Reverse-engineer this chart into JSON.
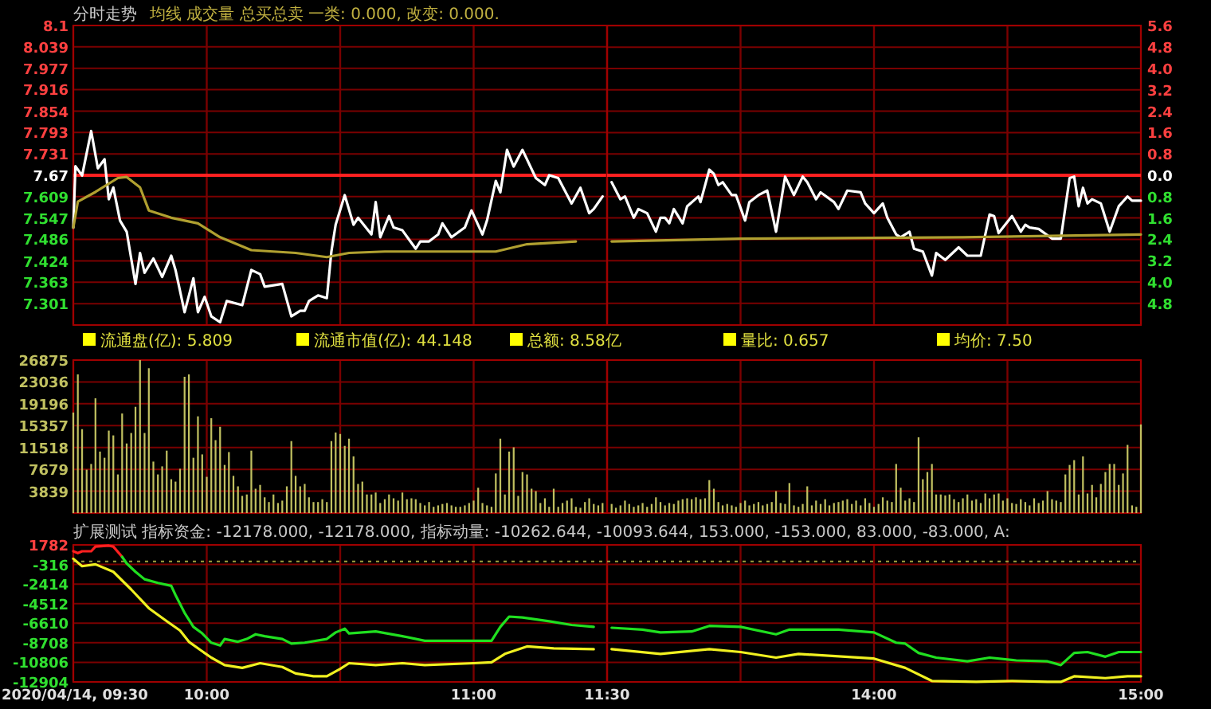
{
  "chart_data": [
    {
      "type": "line",
      "title": "分时走势",
      "subtitle": "均线  成交量  总买总卖  一类: 0.000,  改变: 0.000.",
      "tick_labels": "y",
      "grid": true,
      "xlim": [
        9.5,
        11.5
      ],
      "xticks": [
        9.5,
        10,
        10.5,
        11,
        11.5
      ],
      "ylim": [
        7.24,
        8.1
      ],
      "yticks": [
        8.1,
        8.039,
        7.977,
        7.916,
        7.854,
        7.793,
        7.731,
        7.67,
        7.609,
        7.547,
        7.486,
        7.424,
        7.363,
        7.301
      ],
      "ref_lines": [
        {
          "axis": "y",
          "value": 7.67,
          "color": "#ff2020"
        }
      ],
      "annotations": [
        "流通盘(亿): 5.809",
        "流通市值(亿): 44.148",
        "总额: 8.58亿",
        "量比: 0.657",
        "均价: 7.50"
      ],
      "series": [
        {
          "color": "#ffffff",
          "x": [
            9.5,
            9.508,
            9.533,
            9.567,
            9.592,
            9.617,
            9.633,
            9.65,
            9.675,
            9.7,
            9.733,
            9.75,
            9.767,
            9.8,
            9.833,
            9.867,
            9.883,
            9.917,
            9.95,
            9.967,
            9.992,
            10.017,
            10.05,
            10.075,
            10.133,
            10.167,
            10.2,
            10.217,
            10.283,
            10.317,
            10.35,
            10.367,
            10.383,
            10.417,
            10.45,
            10.467,
            10.483,
            10.517,
            10.55,
            10.567,
            10.617,
            10.633,
            10.65,
            10.683,
            10.7,
            10.733,
            10.783,
            10.8,
            10.833,
            10.867,
            10.883,
            10.917,
            10.967,
            10.992,
            11.033,
            11.05,
            11.083,
            11.1,
            11.125,
            11.15,
            11.183,
            11.233,
            11.267,
            11.283,
            11.317,
            11.367,
            11.4,
            11.433,
            11.45,
            11.483
          ],
          "values": [
            7.52,
            7.696,
            7.669,
            7.797,
            7.69,
            7.716,
            7.601,
            7.635,
            7.54,
            7.508,
            7.358,
            7.447,
            7.39,
            7.431,
            7.378,
            7.439,
            7.398,
            7.277,
            7.374,
            7.277,
            7.321,
            7.265,
            7.248,
            7.309,
            7.297,
            7.398,
            7.386,
            7.35,
            7.358,
            7.265,
            7.281,
            7.281,
            7.309,
            7.325,
            7.317,
            7.451,
            7.528,
            7.613,
            7.528,
            7.548,
            7.5,
            7.593,
            7.492,
            7.553,
            7.52,
            7.512,
            7.459,
            7.48,
            7.48,
            7.5,
            7.532,
            7.492,
            7.52,
            7.569,
            7.5,
            7.54,
            7.654,
            7.621,
            7.743,
            7.695,
            7.743,
            7.662,
            7.642,
            7.67,
            7.662,
            7.589,
            7.634,
            7.561,
            7.573,
            7.609
          ]
        },
        {
          "color": "#b0a030",
          "x": [
            9.5,
            9.517,
            9.583,
            9.667,
            9.7,
            9.75,
            9.783,
            9.867,
            9.967,
            10.05,
            10.167,
            10.333,
            10.45,
            10.533,
            10.667,
            11.083,
            11.2,
            11.383
          ],
          "values": [
            7.52,
            7.594,
            7.622,
            7.662,
            7.665,
            7.635,
            7.569,
            7.548,
            7.532,
            7.492,
            7.455,
            7.447,
            7.435,
            7.447,
            7.451,
            7.451,
            7.472,
            7.48
          ]
        }
      ]
    },
    {
      "type": "line",
      "tick_labels": "y",
      "grid": true,
      "xlim": [
        13,
        15
      ],
      "xticks": [
        13,
        13.5,
        14,
        14.5,
        15
      ],
      "ylim": [
        7.24,
        8.1
      ],
      "y2lim": [
        -5.61,
        5.61
      ],
      "y2ticks": [
        {
          "value": 5.6,
          "label": "5.6"
        },
        {
          "value": 4.8,
          "label": "4.8"
        },
        {
          "value": 4,
          "label": "4.0"
        },
        {
          "value": 3.2,
          "label": "3.2"
        },
        {
          "value": 2.4,
          "label": "2.4"
        },
        {
          "value": 1.6,
          "label": "1.6"
        },
        {
          "value": 0.8,
          "label": "0.8"
        },
        {
          "value": 0,
          "label": "0.0"
        },
        {
          "value": -0.8,
          "label": "0.8"
        },
        {
          "value": -1.6,
          "label": "1.6"
        },
        {
          "value": -2.4,
          "label": "2.4"
        },
        {
          "value": -3.2,
          "label": "3.2"
        },
        {
          "value": -4.0,
          "label": "4.0"
        },
        {
          "value": -4.8,
          "label": "4.8"
        }
      ],
      "ref_lines": [
        {
          "axis": "y",
          "value": 7.67,
          "color": "#ff2020"
        }
      ],
      "series": [
        {
          "color": "#ffffff",
          "x": [
            13.017,
            13.05,
            13.067,
            13.1,
            13.117,
            13.15,
            13.183,
            13.2,
            13.217,
            13.233,
            13.25,
            13.283,
            13.3,
            13.342,
            13.35,
            13.383,
            13.4,
            13.417,
            13.433,
            13.467,
            13.483,
            13.517,
            13.533,
            13.567,
            13.6,
            13.633,
            13.667,
            13.7,
            13.733,
            13.75,
            13.783,
            13.8,
            13.85,
            13.867,
            13.9,
            13.95,
            13.967,
            14,
            14.033,
            14.05,
            14.083,
            14.1,
            14.133,
            14.15,
            14.183,
            14.217,
            14.233,
            14.267,
            14.317,
            14.35,
            14.4,
            14.433,
            14.45,
            14.467,
            14.517,
            14.55,
            14.567,
            14.583,
            14.617,
            14.667,
            14.7,
            14.733,
            14.75,
            14.767,
            14.783,
            14.8,
            14.817,
            14.85,
            14.883,
            14.917,
            14.95,
            14.967,
            15
          ],
          "values": [
            7.65,
            7.601,
            7.609,
            7.548,
            7.573,
            7.561,
            7.508,
            7.548,
            7.548,
            7.532,
            7.573,
            7.532,
            7.581,
            7.609,
            7.593,
            7.686,
            7.674,
            7.642,
            7.65,
            7.613,
            7.613,
            7.54,
            7.593,
            7.613,
            7.626,
            7.508,
            7.666,
            7.613,
            7.666,
            7.65,
            7.601,
            7.621,
            7.593,
            7.573,
            7.626,
            7.621,
            7.589,
            7.561,
            7.589,
            7.548,
            7.5,
            7.492,
            7.508,
            7.459,
            7.451,
            7.382,
            7.447,
            7.427,
            7.463,
            7.439,
            7.439,
            7.557,
            7.553,
            7.504,
            7.553,
            7.508,
            7.528,
            7.52,
            7.516,
            7.488,
            7.488,
            7.662,
            7.666,
            7.581,
            7.634,
            7.589,
            7.601,
            7.589,
            7.508,
            7.581,
            7.609,
            7.597,
            7.597
          ]
        },
        {
          "color": "#b0a030",
          "x": [
            13.017,
            13.5,
            14.333,
            15
          ],
          "values": [
            7.48,
            7.488,
            7.492,
            7.5
          ]
        }
      ]
    },
    {
      "type": "bar",
      "tick_labels": "y",
      "grid": true,
      "xlim": [
        9.5,
        11.5
      ],
      "xticks": [
        9.5,
        10,
        10.5,
        11,
        11.5
      ],
      "ylim": [
        0,
        26875
      ],
      "yticks": [
        3839,
        7679,
        11518,
        15357,
        19196,
        23036,
        26875
      ],
      "x": [
        9.5,
        9.517,
        9.533,
        9.55,
        9.567,
        9.583,
        9.6,
        9.617,
        9.633,
        9.65,
        9.667,
        9.683,
        9.7,
        9.717,
        9.733,
        9.75,
        9.767,
        9.783,
        9.8,
        9.817,
        9.833,
        9.85,
        9.867,
        9.883,
        9.9,
        9.917,
        9.933,
        9.95,
        9.967,
        9.983,
        10,
        10.017,
        10.033,
        10.05,
        10.067,
        10.083,
        10.1,
        10.117,
        10.133,
        10.15,
        10.167,
        10.183,
        10.2,
        10.217,
        10.233,
        10.25,
        10.267,
        10.283,
        10.3,
        10.317,
        10.333,
        10.35,
        10.367,
        10.383,
        10.4,
        10.417,
        10.433,
        10.45,
        10.467,
        10.483,
        10.5,
        10.517,
        10.533,
        10.55,
        10.567,
        10.583,
        10.6,
        10.617,
        10.633,
        10.65,
        10.667,
        10.683,
        10.7,
        10.717,
        10.733,
        10.75,
        10.767,
        10.783,
        10.8,
        10.817,
        10.833,
        10.85,
        10.867,
        10.883,
        10.9,
        10.917,
        10.933,
        10.95,
        10.967,
        10.983,
        11,
        11.017,
        11.033,
        11.05,
        11.067,
        11.083,
        11.1,
        11.117,
        11.133,
        11.15,
        11.167,
        11.183,
        11.2,
        11.217,
        11.233,
        11.25,
        11.267,
        11.283,
        11.3,
        11.317,
        11.333,
        11.35,
        11.367,
        11.383,
        11.4,
        11.417,
        11.433,
        11.45,
        11.467,
        11.483
      ],
      "series": [
        {
          "color": "#c0c060",
          "values": [
            17660,
            24360,
            14730,
            7620,
            8620,
            20170,
            10800,
            9710,
            14480,
            13640,
            6780,
            17490,
            12220,
            14060,
            18660,
            26870,
            14060,
            25440,
            9040,
            6780,
            8200,
            10960,
            5940,
            5520,
            7780,
            23940,
            24360,
            9710,
            16990,
            10300,
            6360,
            16660,
            12810,
            15150,
            8450,
            10710,
            6530,
            4690,
            3010,
            3260,
            10960,
            4270,
            4940,
            2760,
            1930,
            3260,
            1760,
            2180,
            4690,
            12640,
            6530,
            4690,
            5110,
            2760,
            1930,
            1930,
            2430,
            1930,
            12640,
            14150,
            13890,
            11800,
            13060,
            9960,
            5110,
            5520,
            3260,
            3260,
            3600,
            1760,
            2430,
            3260,
            2590,
            2180,
            3600,
            2430,
            2590,
            2430,
            1760,
            1340,
            1930,
            1090,
            1340,
            1590,
            1760,
            1340,
            1090,
            1090,
            1340,
            1760,
            2180,
            4440,
            1760,
            1340,
            1090,
            6950,
            13060,
            3260,
            10800,
            11550,
            3010,
            7200,
            6780,
            4270,
            3850,
            1760,
            2590,
            1090,
            4270,
            1090,
            1760,
            2180,
            2590,
            1090,
            920,
            1930,
            2590,
            1590,
            1340,
            1760
          ]
        }
      ]
    },
    {
      "type": "bar",
      "tick_labels": false,
      "grid": true,
      "xlim": [
        13,
        15
      ],
      "xticks": [
        13,
        13.5,
        14,
        14.5,
        15
      ],
      "ylim": [
        0,
        26875
      ],
      "yticks": [
        3839,
        7679,
        11518,
        15357,
        19196,
        23036,
        26875
      ],
      "x": [
        13.017,
        13.033,
        13.05,
        13.067,
        13.083,
        13.1,
        13.117,
        13.133,
        13.15,
        13.167,
        13.183,
        13.2,
        13.217,
        13.233,
        13.25,
        13.267,
        13.283,
        13.3,
        13.317,
        13.333,
        13.35,
        13.367,
        13.383,
        13.4,
        13.417,
        13.433,
        13.45,
        13.467,
        13.483,
        13.5,
        13.517,
        13.533,
        13.55,
        13.567,
        13.583,
        13.6,
        13.617,
        13.633,
        13.65,
        13.667,
        13.683,
        13.7,
        13.717,
        13.733,
        13.75,
        13.767,
        13.783,
        13.8,
        13.817,
        13.833,
        13.85,
        13.867,
        13.883,
        13.9,
        13.917,
        13.933,
        13.95,
        13.967,
        13.983,
        14,
        14.017,
        14.033,
        14.05,
        14.067,
        14.083,
        14.1,
        14.117,
        14.133,
        14.15,
        14.167,
        14.183,
        14.2,
        14.217,
        14.233,
        14.25,
        14.267,
        14.283,
        14.3,
        14.317,
        14.333,
        14.35,
        14.367,
        14.383,
        14.4,
        14.417,
        14.433,
        14.45,
        14.467,
        14.483,
        14.5,
        14.517,
        14.533,
        14.55,
        14.567,
        14.583,
        14.6,
        14.617,
        14.633,
        14.65,
        14.667,
        14.683,
        14.7,
        14.717,
        14.733,
        14.75,
        14.767,
        14.783,
        14.8,
        14.817,
        14.833,
        14.85,
        14.867,
        14.883,
        14.9,
        14.917,
        14.933,
        14.95,
        14.967,
        14.983,
        15
      ],
      "series": [
        {
          "color": "#c0c060",
          "values": [
            1590,
            920,
            1340,
            2180,
            1590,
            1090,
            1340,
            1760,
            1090,
            1590,
            2760,
            1930,
            1340,
            1760,
            1590,
            2180,
            2430,
            2590,
            2430,
            2760,
            2430,
            2590,
            5780,
            4270,
            1930,
            1340,
            1590,
            1340,
            1090,
            1760,
            2180,
            1340,
            1590,
            1930,
            1340,
            1590,
            1930,
            3850,
            1760,
            1590,
            5270,
            1340,
            1090,
            1590,
            4690,
            1340,
            2180,
            1590,
            2430,
            1340,
            1760,
            1930,
            2180,
            2430,
            1590,
            2180,
            1340,
            2590,
            1760,
            1090,
            1590,
            2760,
            2180,
            1930,
            8620,
            4440,
            2180,
            2590,
            1930,
            13310,
            5940,
            7200,
            8620,
            3260,
            3260,
            3090,
            3260,
            2430,
            1930,
            2590,
            3260,
            2180,
            2430,
            1760,
            3430,
            2590,
            3260,
            3430,
            2180,
            2590,
            1760,
            1590,
            2430,
            1930,
            1340,
            2590,
            1760,
            2180,
            3850,
            2430,
            2180,
            1930,
            6780,
            8450,
            9290,
            3260,
            9960,
            3430,
            4940,
            2760,
            5110,
            7200,
            8620,
            8620,
            4940,
            6950,
            11970,
            1340,
            1090,
            15570
          ]
        }
      ]
    },
    {
      "type": "line",
      "title": "扩展测试  指标资金: -12178.000, -12178.000, 指标动量: -10262.644, -10093.644, 153.000, -153.000, 83.000, -83.000, A:",
      "grid": true,
      "xlim": [
        9.5,
        11.5
      ],
      "xticks": [
        {
          "value": 9.5,
          "label": "2020/04/14, 09:30"
        },
        {
          "value": 10,
          "label": "10:00"
        },
        {
          "value": 10.5,
          "label": null
        },
        {
          "value": 11,
          "label": "11:00"
        },
        {
          "value": 11.5,
          "label": "11:30"
        }
      ],
      "ylim": [
        -12904,
        1782
      ],
      "yticks": [
        1782,
        -316,
        -2414,
        -4512,
        -6610,
        -8708,
        -10806,
        -12904
      ],
      "ref_lines": [
        {
          "axis": "y",
          "value": 0,
          "color": "#a0a040",
          "line_style": "dotted"
        }
      ],
      "series": [
        {
          "color": "#ff2020",
          "x": [
            9.5,
            9.517,
            9.533,
            9.567,
            9.583,
            9.633,
            9.65,
            9.683
          ],
          "values": [
            1100,
            900,
            1100,
            1100,
            1600,
            1700,
            1600,
            500
          ]
        },
        {
          "color": "#20e020",
          "x": [
            9.683,
            9.7,
            9.733,
            9.767,
            9.817,
            9.867,
            9.883,
            9.917,
            9.95,
            9.983,
            10.017,
            10.05,
            10.067,
            10.117,
            10.15,
            10.183,
            10.217,
            10.283,
            10.317,
            10.367,
            10.45,
            10.483,
            10.517,
            10.533,
            10.633,
            10.733,
            10.817,
            11,
            11.067,
            11.1,
            11.133,
            11.183,
            11.283,
            11.367,
            11.45
          ],
          "values": [
            500,
            -200,
            -1100,
            -1900,
            -2300,
            -2600,
            -3600,
            -5500,
            -7000,
            -7700,
            -8700,
            -9000,
            -8300,
            -8600,
            -8300,
            -7800,
            -8000,
            -8300,
            -8800,
            -8700,
            -8300,
            -7600,
            -7200,
            -7700,
            -7500,
            -8000,
            -8500,
            -8500,
            -8500,
            -7000,
            -5900,
            -6000,
            -6400,
            -6800,
            -7000
          ]
        },
        {
          "color": "#f0f020",
          "x": [
            9.5,
            9.533,
            9.583,
            9.65,
            9.717,
            9.783,
            9.85,
            9.9,
            9.933,
            9.967,
            10.017,
            10.067,
            10.133,
            10.2,
            10.283,
            10.333,
            10.4,
            10.45,
            10.5,
            10.533,
            10.633,
            10.733,
            10.817,
            11,
            11.067,
            11.117,
            11.2,
            11.3,
            11.45
          ],
          "values": [
            300,
            -500,
            -300,
            -1100,
            -3000,
            -5000,
            -6400,
            -7400,
            -8600,
            -9300,
            -10300,
            -11100,
            -11400,
            -10900,
            -11300,
            -12000,
            -12300,
            -12300,
            -11500,
            -10900,
            -11100,
            -10900,
            -11100,
            -10900,
            -10800,
            -9900,
            -9100,
            -9300,
            -9400
          ]
        }
      ]
    },
    {
      "type": "line",
      "tick_labels": "x",
      "grid": true,
      "xlim": [
        13,
        15
      ],
      "xticks": [
        {
          "value": 13,
          "label": null
        },
        {
          "value": 13.5,
          "label": null
        },
        {
          "value": 14,
          "label": "14:00"
        },
        {
          "value": 14.5,
          "label": null
        },
        {
          "value": 15,
          "label": "15:00"
        }
      ],
      "ylim": [
        -12904,
        1782
      ],
      "yticks": [
        1782,
        -316,
        -2414,
        -4512,
        -6610,
        -8708,
        -10806,
        -12904
      ],
      "ref_lines": [
        {
          "axis": "y",
          "value": 0,
          "color": "#a0a040",
          "line_style": "dotted"
        }
      ],
      "series": [
        {
          "color": "#20e020",
          "x": [
            13.017,
            13.133,
            13.2,
            13.317,
            13.383,
            13.5,
            13.633,
            13.683,
            13.867,
            14,
            14.083,
            14.117,
            14.167,
            14.233,
            14.35,
            14.433,
            14.533,
            14.65,
            14.7,
            14.75,
            14.8,
            14.867,
            14.917,
            15
          ],
          "values": [
            -7100,
            -7300,
            -7600,
            -7500,
            -6900,
            -7000,
            -7800,
            -7300,
            -7300,
            -7600,
            -8700,
            -8800,
            -9800,
            -10300,
            -10700,
            -10300,
            -10600,
            -10700,
            -11100,
            -9800,
            -9700,
            -10200,
            -9700,
            -9700
          ]
        },
        {
          "color": "#f0f020",
          "x": [
            13.017,
            13.2,
            13.383,
            13.5,
            13.633,
            13.717,
            14,
            14.117,
            14.217,
            14.383,
            14.517,
            14.65,
            14.7,
            14.75,
            14.867,
            14.95,
            15
          ],
          "values": [
            -9400,
            -9900,
            -9400,
            -9700,
            -10300,
            -9900,
            -10400,
            -11400,
            -12800,
            -12900,
            -12800,
            -12900,
            -12900,
            -12300,
            -12500,
            -12300,
            -12300
          ]
        }
      ]
    }
  ]
}
